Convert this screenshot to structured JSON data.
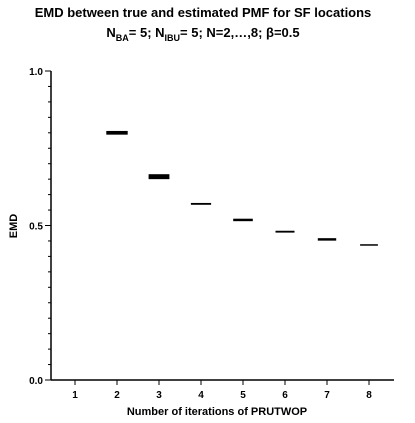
{
  "chart_data": {
    "type": "box",
    "title": "EMD between true and estimated PMF for SF locations",
    "subtitle_parts": {
      "n_ba": "N",
      "n_ba_sub": "BA",
      "n_ba_val": "= 5; ",
      "n_ibu": "N",
      "n_ibu_sub": "IBU",
      "rest": "= 5; N=2,…,8; β=0.5"
    },
    "xlabel": "Number of iterations of PRUTWOP",
    "ylabel": "EMD",
    "categories": [
      "1",
      "2",
      "3",
      "4",
      "5",
      "6",
      "7",
      "8"
    ],
    "values": [
      null,
      0.8,
      0.658,
      0.57,
      0.518,
      0.48,
      0.455,
      0.437
    ],
    "box_heights": [
      null,
      0.012,
      0.016,
      0.006,
      0.008,
      0.006,
      0.008,
      0.003
    ],
    "y_ticks": [
      "0.0",
      "0.5",
      "1.0"
    ],
    "ylim": [
      0,
      1
    ],
    "grid": false,
    "legend": "none",
    "colors": {
      "mark": "#000000",
      "axis": "#000000"
    }
  }
}
